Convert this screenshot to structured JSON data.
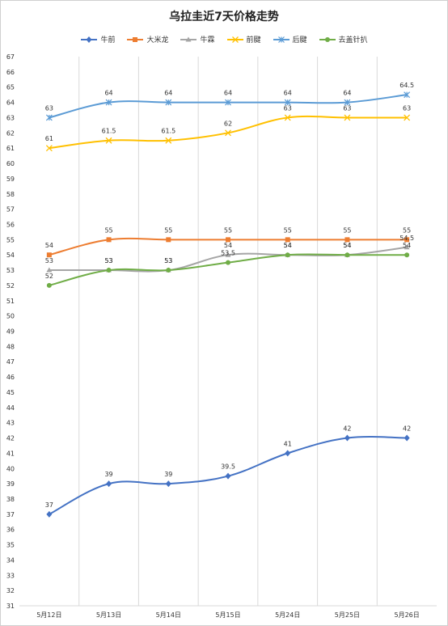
{
  "chart_data": {
    "type": "line",
    "title": "乌拉圭近7天价格走势",
    "categories": [
      "5月12日",
      "5月13日",
      "5月14日",
      "5月15日",
      "5月24日",
      "5月25日",
      "5月26日"
    ],
    "ylim": [
      31,
      67
    ],
    "ytick_step": 1,
    "grid": "vertical",
    "legend": "top",
    "series": [
      {
        "name": "牛前",
        "color": "#4472C4",
        "marker": "diamond",
        "values": [
          37,
          39,
          39,
          39.5,
          41,
          42,
          42
        ],
        "labels": [
          "37",
          "39",
          "39",
          "39.5",
          "41",
          "42",
          "42"
        ]
      },
      {
        "name": "大米龙",
        "color": "#ED7D31",
        "marker": "square",
        "values": [
          54,
          55,
          55,
          55,
          55,
          55,
          55
        ],
        "labels": [
          "54",
          "55",
          "55",
          "55",
          "55",
          "55",
          "55"
        ]
      },
      {
        "name": "牛霖",
        "color": "#A5A5A5",
        "marker": "triangle",
        "values": [
          53,
          53,
          53,
          54,
          54,
          54,
          54.5
        ],
        "labels": [
          "53",
          "53",
          "53",
          "54",
          "54",
          "54",
          "54.5"
        ]
      },
      {
        "name": "前腱",
        "color": "#FFC000",
        "marker": "x",
        "values": [
          61,
          61.5,
          61.5,
          62,
          63,
          63,
          63
        ],
        "labels": [
          "61",
          "61.5",
          "61.5",
          "62",
          "63",
          "63",
          "63"
        ]
      },
      {
        "name": "后腱",
        "color": "#5B9BD5",
        "marker": "star",
        "values": [
          63,
          64,
          64,
          64,
          64,
          64,
          64.5
        ],
        "labels": [
          "63",
          "64",
          "64",
          "64",
          "64",
          "64",
          "64.5"
        ]
      },
      {
        "name": "去盖针扒",
        "color": "#70AD47",
        "marker": "circle",
        "values": [
          52,
          53,
          53,
          53.5,
          54,
          54,
          54
        ],
        "labels": [
          "52",
          "53",
          "53",
          "53.5",
          "54",
          "54",
          "54"
        ]
      }
    ]
  }
}
